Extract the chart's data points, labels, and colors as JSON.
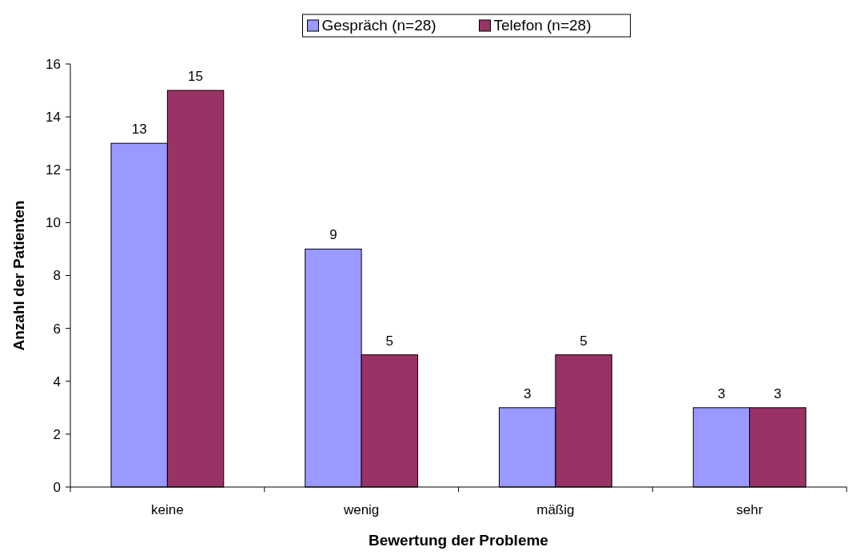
{
  "chart_data": {
    "type": "bar",
    "xlabel": "Bewertung der Probleme",
    "ylabel": "Anzahl der Patienten",
    "categories": [
      "keine",
      "wenig",
      "mäßig",
      "sehr"
    ],
    "series": [
      {
        "name": "Gespräch (n=28)",
        "color": "#9999ff",
        "values": [
          13,
          9,
          3,
          3
        ]
      },
      {
        "name": "Telefon (n=28)",
        "color": "#993366",
        "values": [
          15,
          5,
          5,
          3
        ]
      }
    ],
    "ylim": [
      0,
      16
    ],
    "yticks": [
      0,
      2,
      4,
      6,
      8,
      10,
      12,
      14,
      16
    ],
    "data_labels": true,
    "legend": "top",
    "grid": false
  }
}
